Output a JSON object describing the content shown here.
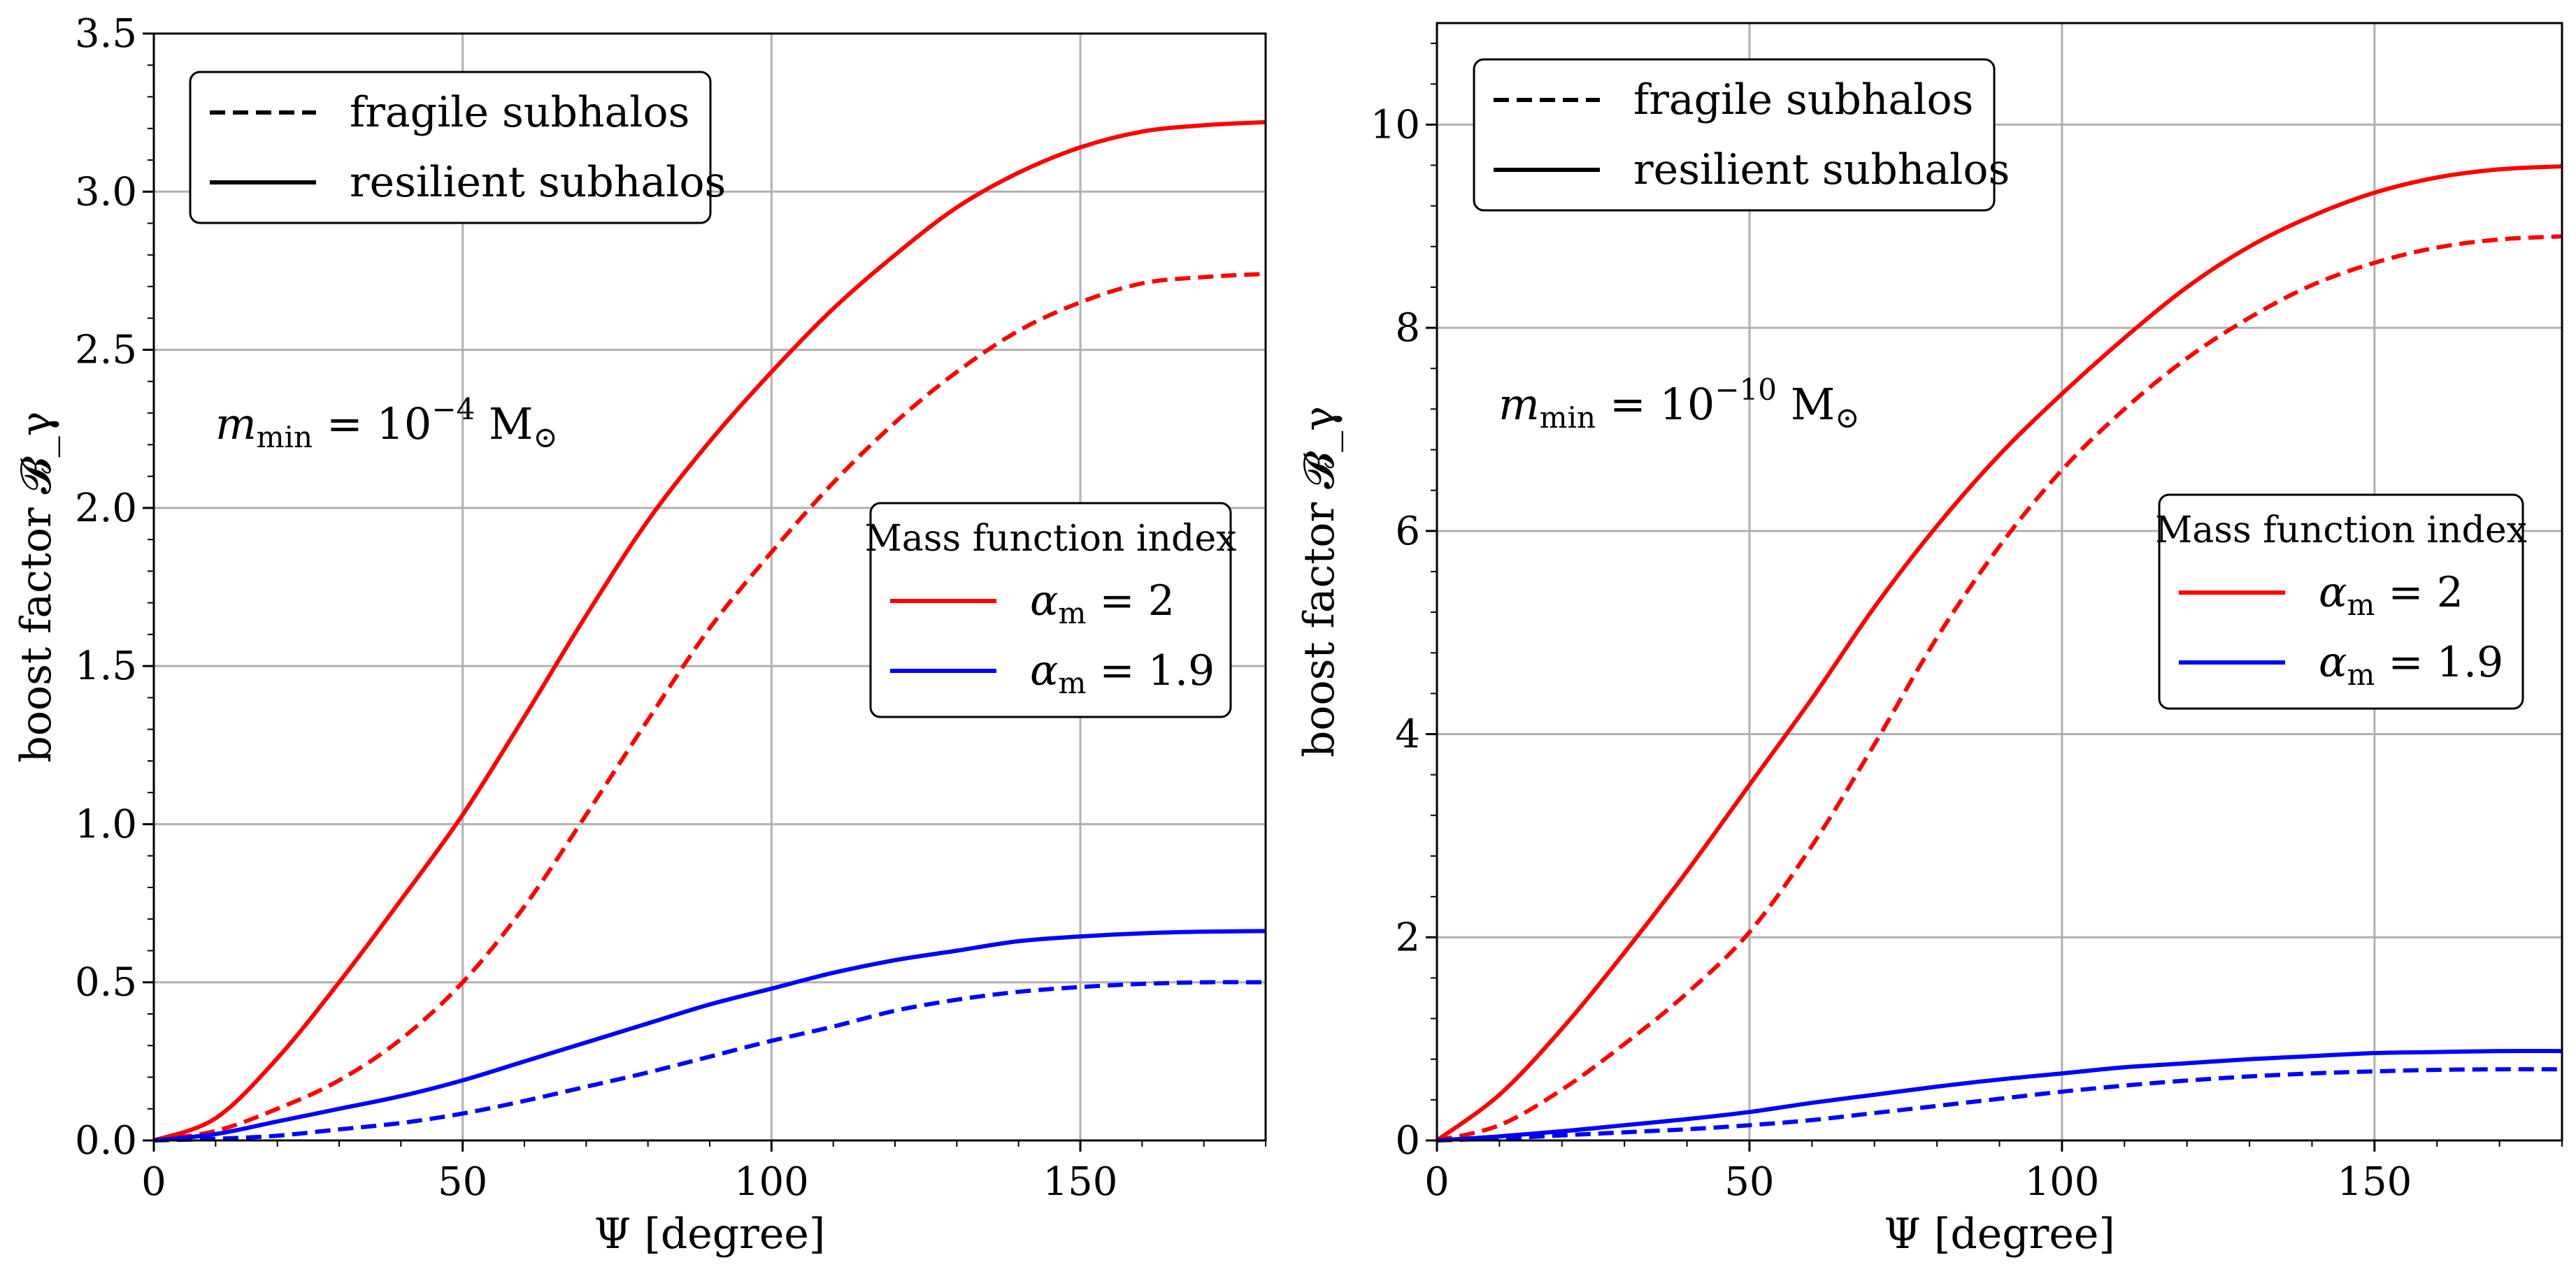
{
  "figure": {
    "panel_annotations": [
      "m_min = 10^-4 M_sun",
      "m_min = 10^-10 M_sun"
    ]
  },
  "chart_data": [
    {
      "type": "line",
      "xlabel": "Ψ [degree]",
      "ylabel": "boost factor 𝓑_γ",
      "xlim": [
        0,
        180
      ],
      "ylim": [
        0,
        3.5
      ],
      "xticks": [
        0,
        50,
        100,
        150
      ],
      "xtick_labels": [
        "0",
        "50",
        "100",
        "150"
      ],
      "yticks": [
        0,
        0.5,
        1,
        1.5,
        2,
        2.5,
        3,
        3.5
      ],
      "ytick_labels": [
        "0.0",
        "0.5",
        "1.0",
        "1.5",
        "2.0",
        "2.5",
        "3.0",
        "3.5"
      ],
      "grid": true,
      "annotation": {
        "prefix": "m",
        "sub": "min",
        "middle": " = 10",
        "sup": "−4",
        "unit": " M",
        "unit_sub": "⊙"
      },
      "style_legend": {
        "placement": "top-left",
        "entries": [
          {
            "label": "fragile subhalos",
            "linestyle": "dashed"
          },
          {
            "label": "resilient subhalos",
            "linestyle": "solid"
          }
        ]
      },
      "color_legend": {
        "placement": "center-right",
        "title": "Mass function index",
        "entries": [
          {
            "symbol": "α",
            "sub": "m",
            "value": " = 2",
            "color": "#ff0000"
          },
          {
            "symbol": "α",
            "sub": "m",
            "value": " = 1.9",
            "color": "#0000ff"
          }
        ]
      },
      "x": [
        0,
        10,
        20,
        30,
        40,
        50,
        60,
        70,
        80,
        90,
        100,
        110,
        120,
        130,
        140,
        150,
        160,
        170,
        180
      ],
      "series": [
        {
          "name": "resilient, α_m = 2",
          "color": "#ff0000",
          "linestyle": "solid",
          "values": [
            0,
            0.07,
            0.26,
            0.5,
            0.76,
            1.03,
            1.34,
            1.66,
            1.96,
            2.21,
            2.43,
            2.63,
            2.8,
            2.95,
            3.06,
            3.14,
            3.19,
            3.21,
            3.22
          ]
        },
        {
          "name": "fragile, α_m = 2",
          "color": "#ff0000",
          "linestyle": "dashed",
          "values": [
            0,
            0.03,
            0.1,
            0.19,
            0.32,
            0.5,
            0.74,
            1.03,
            1.33,
            1.62,
            1.86,
            2.08,
            2.27,
            2.43,
            2.56,
            2.65,
            2.71,
            2.73,
            2.74
          ]
        },
        {
          "name": "resilient, α_m = 1.9",
          "color": "#0000ff",
          "linestyle": "solid",
          "values": [
            0,
            0.02,
            0.06,
            0.1,
            0.14,
            0.19,
            0.25,
            0.31,
            0.37,
            0.43,
            0.48,
            0.53,
            0.57,
            0.6,
            0.63,
            0.645,
            0.655,
            0.66,
            0.662
          ]
        },
        {
          "name": "fragile, α_m = 1.9",
          "color": "#0000ff",
          "linestyle": "dashed",
          "values": [
            0,
            0.005,
            0.015,
            0.035,
            0.055,
            0.085,
            0.125,
            0.17,
            0.215,
            0.265,
            0.315,
            0.36,
            0.41,
            0.445,
            0.47,
            0.485,
            0.495,
            0.5,
            0.5
          ]
        }
      ]
    },
    {
      "type": "line",
      "xlabel": "Ψ [degree]",
      "ylabel": "boost factor 𝓑_γ",
      "xlim": [
        0,
        180
      ],
      "ylim": [
        0,
        11
      ],
      "xticks": [
        0,
        50,
        100,
        150
      ],
      "xtick_labels": [
        "0",
        "50",
        "100",
        "150"
      ],
      "yticks": [
        0,
        2,
        4,
        6,
        8,
        10
      ],
      "ytick_labels": [
        "0",
        "2",
        "4",
        "6",
        "8",
        "10"
      ],
      "grid": true,
      "annotation": {
        "prefix": "m",
        "sub": "min",
        "middle": " = 10",
        "sup": "−10",
        "unit": " M",
        "unit_sub": "⊙"
      },
      "style_legend": {
        "placement": "top-left",
        "entries": [
          {
            "label": "fragile subhalos",
            "linestyle": "dashed"
          },
          {
            "label": "resilient subhalos",
            "linestyle": "solid"
          }
        ]
      },
      "color_legend": {
        "placement": "center-right",
        "title": "Mass function index",
        "entries": [
          {
            "symbol": "α",
            "sub": "m",
            "value": " = 2",
            "color": "#ff0000"
          },
          {
            "symbol": "α",
            "sub": "m",
            "value": " = 1.9",
            "color": "#0000ff"
          }
        ]
      },
      "x": [
        0,
        10,
        20,
        30,
        40,
        50,
        60,
        70,
        80,
        90,
        100,
        110,
        120,
        130,
        140,
        150,
        160,
        170,
        180
      ],
      "series": [
        {
          "name": "resilient, α_m = 2",
          "color": "#ff0000",
          "linestyle": "solid",
          "values": [
            0,
            0.45,
            1.1,
            1.85,
            2.65,
            3.5,
            4.35,
            5.25,
            6.05,
            6.75,
            7.35,
            7.9,
            8.4,
            8.8,
            9.1,
            9.33,
            9.48,
            9.56,
            9.59
          ]
        },
        {
          "name": "fragile, α_m = 2",
          "color": "#ff0000",
          "linestyle": "dashed",
          "values": [
            0,
            0.15,
            0.5,
            0.95,
            1.45,
            2.05,
            2.9,
            3.9,
            4.95,
            5.85,
            6.6,
            7.2,
            7.7,
            8.1,
            8.42,
            8.64,
            8.79,
            8.87,
            8.9
          ]
        },
        {
          "name": "resilient, α_m = 1.9",
          "color": "#0000ff",
          "linestyle": "solid",
          "values": [
            0,
            0.04,
            0.09,
            0.15,
            0.21,
            0.28,
            0.37,
            0.45,
            0.53,
            0.6,
            0.66,
            0.72,
            0.76,
            0.8,
            0.83,
            0.86,
            0.87,
            0.88,
            0.88
          ]
        },
        {
          "name": "fragile, α_m = 1.9",
          "color": "#0000ff",
          "linestyle": "dashed",
          "values": [
            0,
            0.02,
            0.05,
            0.08,
            0.11,
            0.15,
            0.2,
            0.27,
            0.34,
            0.41,
            0.48,
            0.54,
            0.59,
            0.63,
            0.66,
            0.68,
            0.695,
            0.7,
            0.7
          ]
        }
      ]
    }
  ]
}
